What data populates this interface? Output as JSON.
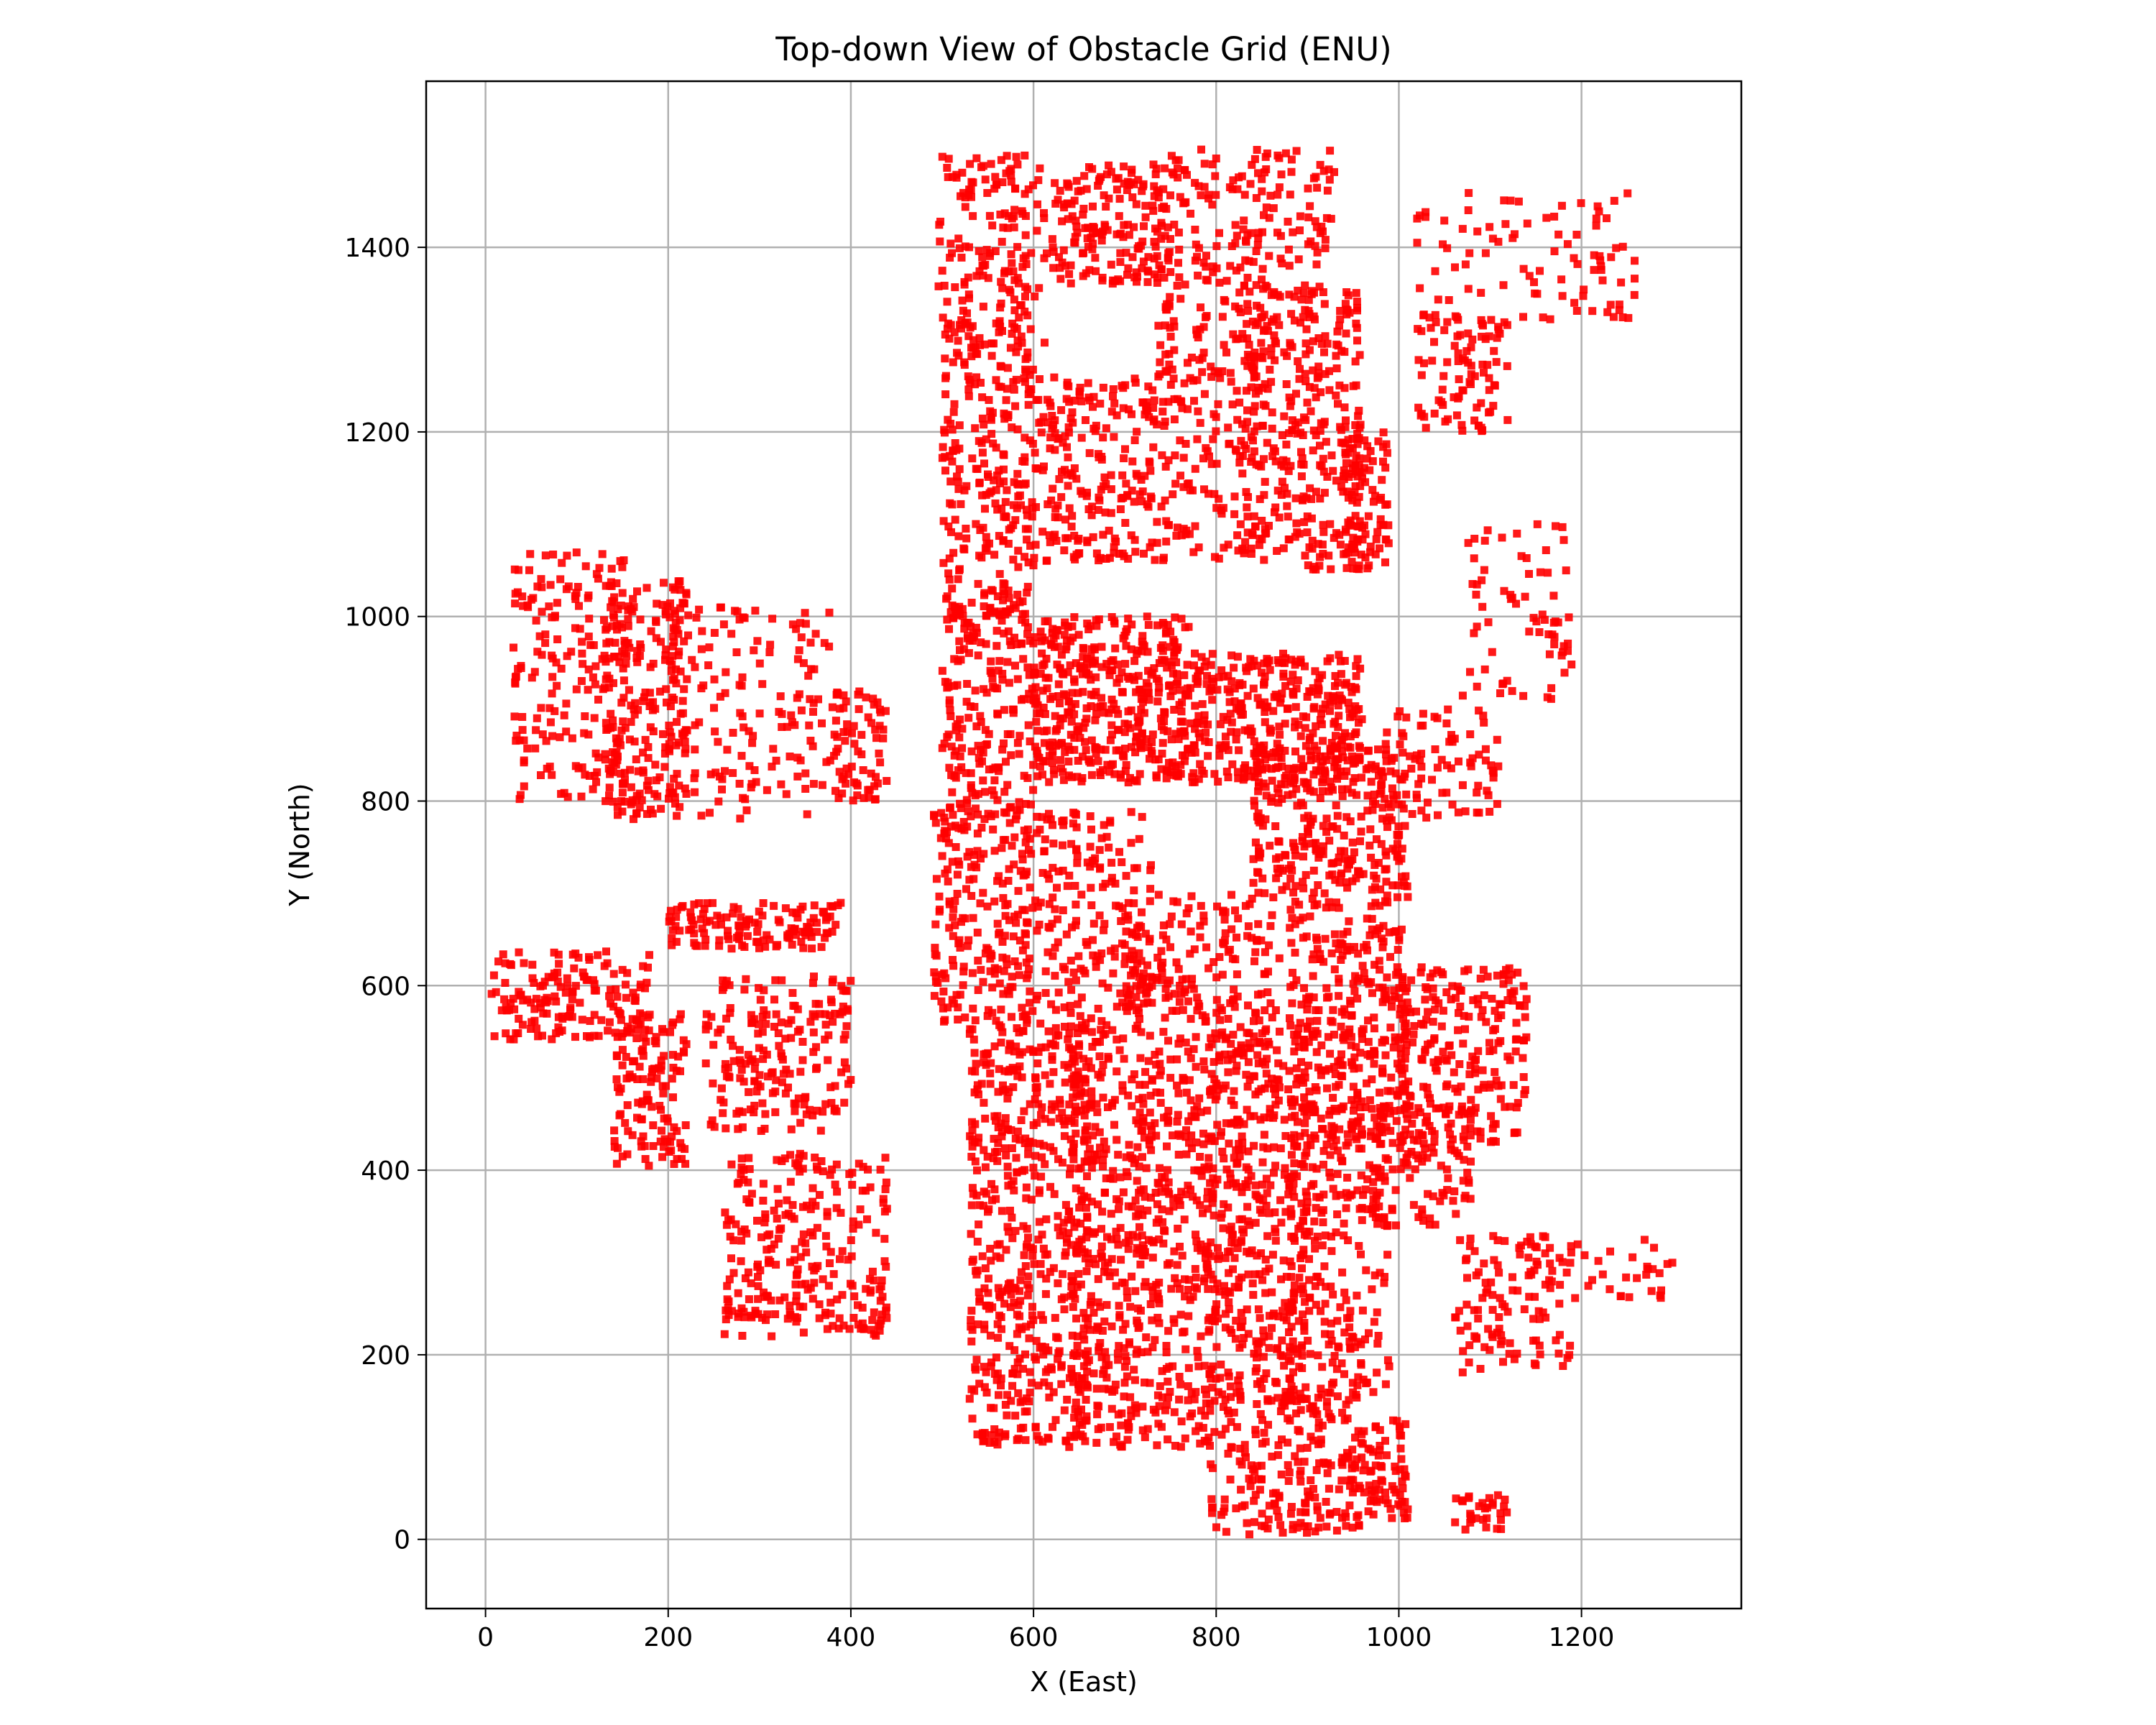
{
  "chart_data": {
    "type": "scatter",
    "title": "Top-down View of Obstacle Grid (ENU)",
    "xlabel": "X (East)",
    "ylabel": "Y (North)",
    "xlim": [
      -65,
      1375
    ],
    "ylim": [
      -75,
      1580
    ],
    "xticks": [
      0,
      200,
      400,
      600,
      800,
      1000,
      1200
    ],
    "yticks": [
      0,
      200,
      400,
      600,
      800,
      1000,
      1200,
      1400
    ],
    "grid": true,
    "marker": "square",
    "color": "#ff0000",
    "clusters": [
      {
        "x": [
          495,
          615
        ],
        "y": [
          1290,
          1500
        ],
        "n": 160
      },
      {
        "x": [
          620,
          745
        ],
        "y": [
          1360,
          1490
        ],
        "n": 170
      },
      {
        "x": [
          745,
          930
        ],
        "y": [
          1380,
          1510
        ],
        "n": 140
      },
      {
        "x": [
          500,
          600
        ],
        "y": [
          1000,
          1330
        ],
        "n": 260
      },
      {
        "x": [
          600,
          735
        ],
        "y": [
          1060,
          1260
        ],
        "n": 210
      },
      {
        "x": [
          735,
          855
        ],
        "y": [
          1060,
          1380
        ],
        "n": 230
      },
      {
        "x": [
          830,
          960
        ],
        "y": [
          1050,
          1360
        ],
        "n": 320
      },
      {
        "x": [
          940,
          990
        ],
        "y": [
          1050,
          1200
        ],
        "n": 80
      },
      {
        "x": [
          500,
          600
        ],
        "y": [
          800,
          1010
        ],
        "n": 180
      },
      {
        "x": [
          600,
          770
        ],
        "y": [
          820,
          1000
        ],
        "n": 420
      },
      {
        "x": [
          770,
          960
        ],
        "y": [
          820,
          960
        ],
        "n": 320
      },
      {
        "x": [
          840,
          1010
        ],
        "y": [
          700,
          860
        ],
        "n": 280
      },
      {
        "x": [
          980,
          1110
        ],
        "y": [
          780,
          900
        ],
        "n": 90
      },
      {
        "x": [
          490,
          600
        ],
        "y": [
          560,
          800
        ],
        "n": 230
      },
      {
        "x": [
          600,
          730
        ],
        "y": [
          560,
          790
        ],
        "n": 180
      },
      {
        "x": [
          700,
          870
        ],
        "y": [
          560,
          700
        ],
        "n": 170
      },
      {
        "x": [
          880,
          1010
        ],
        "y": [
          430,
          700
        ],
        "n": 320
      },
      {
        "x": [
          1000,
          1140
        ],
        "y": [
          430,
          620
        ],
        "n": 220
      },
      {
        "x": [
          530,
          660
        ],
        "y": [
          100,
          560
        ],
        "n": 520
      },
      {
        "x": [
          640,
          800
        ],
        "y": [
          100,
          560
        ],
        "n": 620
      },
      {
        "x": [
          790,
          900
        ],
        "y": [
          150,
          560
        ],
        "n": 420
      },
      {
        "x": [
          880,
          990
        ],
        "y": [
          150,
          480
        ],
        "n": 240
      },
      {
        "x": [
          790,
          960
        ],
        "y": [
          5,
          160
        ],
        "n": 200
      },
      {
        "x": [
          940,
          1010
        ],
        "y": [
          20,
          130
        ],
        "n": 90
      },
      {
        "x": [
          970,
          1080
        ],
        "y": [
          340,
          470
        ],
        "n": 110
      },
      {
        "x": [
          1060,
          1190
        ],
        "y": [
          180,
          330
        ],
        "n": 110
      },
      {
        "x": [
          1140,
          1300
        ],
        "y": [
          260,
          330
        ],
        "n": 35
      },
      {
        "x": [
          1060,
          1120
        ],
        "y": [
          10,
          50
        ],
        "n": 30
      },
      {
        "x": [
          1020,
          1120
        ],
        "y": [
          1200,
          1330
        ],
        "n": 90
      },
      {
        "x": [
          1020,
          1260
        ],
        "y": [
          1320,
          1460
        ],
        "n": 90
      },
      {
        "x": [
          1070,
          1190
        ],
        "y": [
          910,
          1100
        ],
        "n": 70
      },
      {
        "x": [
          30,
          160
        ],
        "y": [
          800,
          1070
        ],
        "n": 180
      },
      {
        "x": [
          130,
          220
        ],
        "y": [
          780,
          1040
        ],
        "n": 200
      },
      {
        "x": [
          200,
          380
        ],
        "y": [
          780,
          1010
        ],
        "n": 160
      },
      {
        "x": [
          380,
          440
        ],
        "y": [
          800,
          920
        ],
        "n": 70
      },
      {
        "x": [
          0,
          180
        ],
        "y": [
          540,
          640
        ],
        "n": 150
      },
      {
        "x": [
          140,
          220
        ],
        "y": [
          400,
          570
        ],
        "n": 130
      },
      {
        "x": [
          200,
          390
        ],
        "y": [
          640,
          690
        ],
        "n": 130
      },
      {
        "x": [
          240,
          400
        ],
        "y": [
          440,
          610
        ],
        "n": 190
      },
      {
        "x": [
          260,
          440
        ],
        "y": [
          220,
          420
        ],
        "n": 260
      }
    ]
  }
}
